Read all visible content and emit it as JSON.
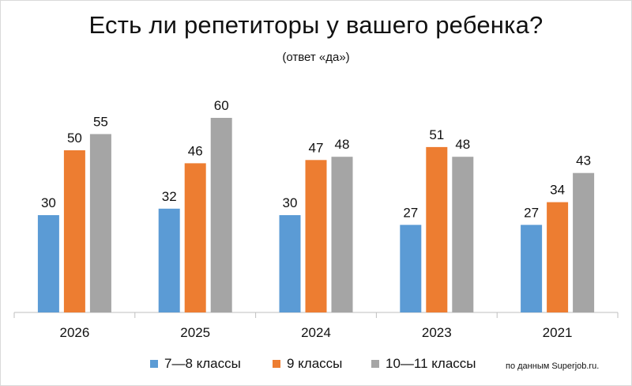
{
  "chart_data": {
    "type": "bar",
    "title": "Есть ли репетиторы у вашего ребенка?",
    "subtitle": "(ответ «да»)",
    "categories": [
      "2026",
      "2025",
      "2024",
      "2023",
      "2021"
    ],
    "series": [
      {
        "name": "7—8 классы",
        "color": "#5b9bd5",
        "values": [
          30,
          32,
          30,
          27,
          27
        ]
      },
      {
        "name": "9 классы",
        "color": "#ed7d31",
        "values": [
          50,
          46,
          47,
          51,
          34
        ]
      },
      {
        "name": "10—11 классы",
        "color": "#a5a5a5",
        "values": [
          55,
          60,
          48,
          48,
          43
        ]
      }
    ],
    "ylim": [
      0,
      60
    ],
    "grid": false,
    "legend_position": "bottom",
    "source": "по данным Superjob.ru."
  }
}
